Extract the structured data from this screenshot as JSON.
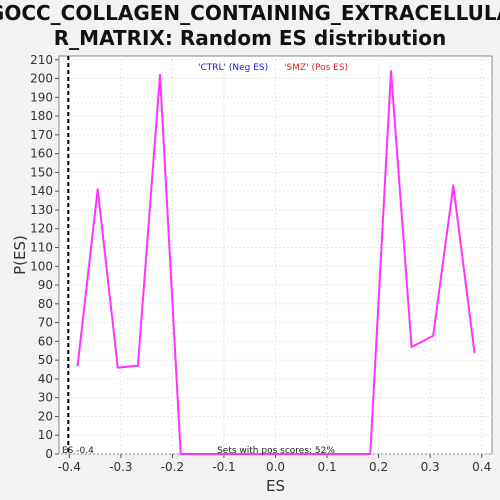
{
  "chart_data": {
    "type": "line",
    "title_lines": [
      "GOCC_COLLAGEN_CONTAINING_EXTRACELLULA",
      "R_MATRIX: Random ES distribution"
    ],
    "xlabel": "ES",
    "ylabel": "P(ES)",
    "xlim": [
      -0.42,
      0.42
    ],
    "ylim": [
      0,
      212
    ],
    "x_ticks": [
      -0.4,
      -0.3,
      -0.2,
      -0.1,
      0.0,
      0.1,
      0.2,
      0.3,
      0.4
    ],
    "x_tick_labels": [
      "-0.4",
      "-0.3",
      "-0.2",
      "-0.1",
      "0.0",
      "0.1",
      "0.2",
      "0.3",
      "0.4"
    ],
    "y_ticks": [
      0,
      10,
      20,
      30,
      40,
      50,
      60,
      70,
      80,
      90,
      100,
      110,
      120,
      130,
      140,
      150,
      160,
      170,
      180,
      190,
      200,
      210
    ],
    "grid": true,
    "legend_placement": "top-center",
    "legend": [
      {
        "label": "'CTRL' (Neg ES)",
        "color": "#1a1acc"
      },
      {
        "label": "'SMZ' (Pos ES)",
        "color": "#dd2222"
      }
    ],
    "series": [
      {
        "color": "#ff33ff",
        "x": [
          -0.384,
          -0.345,
          -0.306,
          -0.267,
          -0.224,
          -0.184,
          -0.144,
          -0.104,
          -0.064,
          -0.024,
          0.016,
          0.056,
          0.096,
          0.136,
          0.184,
          0.224,
          0.264,
          0.306,
          0.345,
          0.386
        ],
        "y": [
          47,
          141,
          46,
          47,
          202,
          0,
          0,
          0,
          0,
          0,
          0,
          0,
          0,
          0,
          0,
          204,
          57,
          63,
          143,
          54
        ]
      }
    ],
    "actual_es": -0.4,
    "actual_es_label": "ES -0.4",
    "annotation": "Sets with pos scores: 52%"
  }
}
